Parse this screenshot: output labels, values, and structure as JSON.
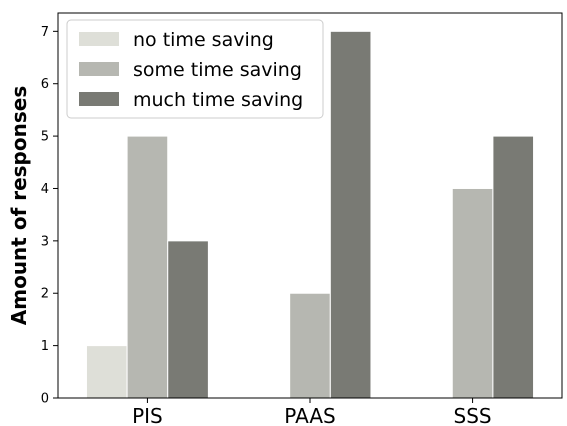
{
  "chart_data": {
    "type": "bar",
    "title": "",
    "xlabel": "",
    "ylabel": "Amount of responses",
    "categories": [
      "PIS",
      "PAAS",
      "SSS"
    ],
    "series": [
      {
        "name": "no time saving",
        "values": [
          1,
          0,
          0
        ],
        "color": "#dedfd8"
      },
      {
        "name": "some time saving",
        "values": [
          5,
          2,
          4
        ],
        "color": "#b6b7b1"
      },
      {
        "name": "much time saving",
        "values": [
          3,
          7,
          5
        ],
        "color": "#797a74"
      }
    ],
    "ylim": [
      0,
      7.35
    ],
    "yticks": [
      "0",
      "1",
      "2",
      "3",
      "4",
      "5",
      "6",
      "7"
    ],
    "grid": false,
    "legend_position": "top-left"
  }
}
